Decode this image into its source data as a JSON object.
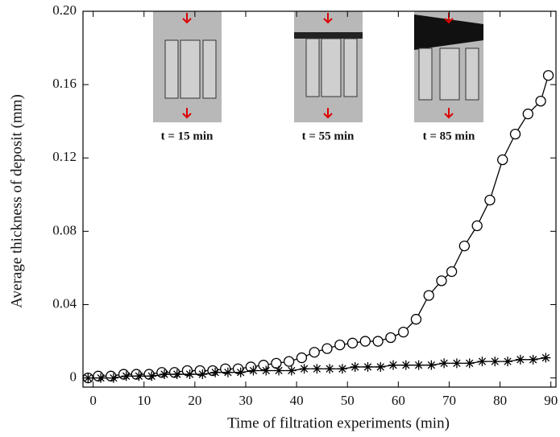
{
  "chart_data": {
    "type": "line",
    "xlabel": "Time of filtration experiments (min)",
    "ylabel": "Average thickness of deposit (mm)",
    "xlim": [
      -2,
      91
    ],
    "ylim": [
      -0.005,
      0.2
    ],
    "xticks": [
      0,
      10,
      20,
      30,
      40,
      50,
      60,
      70,
      80,
      90
    ],
    "yticks": [
      0,
      0.04,
      0.08,
      0.12,
      0.16,
      {
        "value": 0.2,
        "label": "0.20"
      }
    ],
    "annotations": [
      "t = 15 min",
      "t = 55 min",
      "t = 85 min"
    ],
    "series": [
      {
        "color": "#000000",
        "marker": "circle",
        "x": [
          -1,
          1,
          3.5,
          6,
          8.5,
          11,
          13.5,
          16,
          18.5,
          21,
          23.5,
          26,
          28.5,
          31,
          33.5,
          36,
          38.5,
          41,
          43.5,
          46,
          48.5,
          51,
          53.5,
          56,
          58.5,
          61,
          63.5,
          66,
          68.5,
          70.5,
          73,
          75.5,
          78,
          80.5,
          83,
          85.5,
          88,
          89.5
        ],
        "values": [
          0,
          0.001,
          0.001,
          0.002,
          0.002,
          0.002,
          0.003,
          0.003,
          0.004,
          0.004,
          0.004,
          0.005,
          0.005,
          0.006,
          0.007,
          0.008,
          0.009,
          0.011,
          0.014,
          0.016,
          0.018,
          0.019,
          0.02,
          0.02,
          0.022,
          0.025,
          0.032,
          0.045,
          0.053,
          0.058,
          0.072,
          0.083,
          0.097,
          0.119,
          0.133,
          0.144,
          0.151,
          0.165
        ]
      },
      {
        "color": "#000000",
        "marker": "asterisk",
        "x": [
          -1,
          1.5,
          4,
          6.5,
          9,
          11.5,
          14,
          16.5,
          19,
          21.5,
          24,
          26.5,
          29,
          31.5,
          34,
          36.5,
          39,
          41.5,
          44,
          46.5,
          49,
          51.5,
          54,
          56.5,
          59,
          61.5,
          64,
          66.5,
          69,
          71.5,
          74,
          76.5,
          79,
          81.5,
          84,
          86.5,
          89
        ],
        "values": [
          0,
          0,
          0,
          0.001,
          0.001,
          0.001,
          0.002,
          0.002,
          0.002,
          0.002,
          0.003,
          0.003,
          0.003,
          0.004,
          0.004,
          0.004,
          0.004,
          0.005,
          0.005,
          0.005,
          0.005,
          0.006,
          0.006,
          0.006,
          0.007,
          0.007,
          0.007,
          0.007,
          0.008,
          0.008,
          0.008,
          0.009,
          0.009,
          0.009,
          0.01,
          0.01,
          0.011
        ]
      }
    ]
  }
}
